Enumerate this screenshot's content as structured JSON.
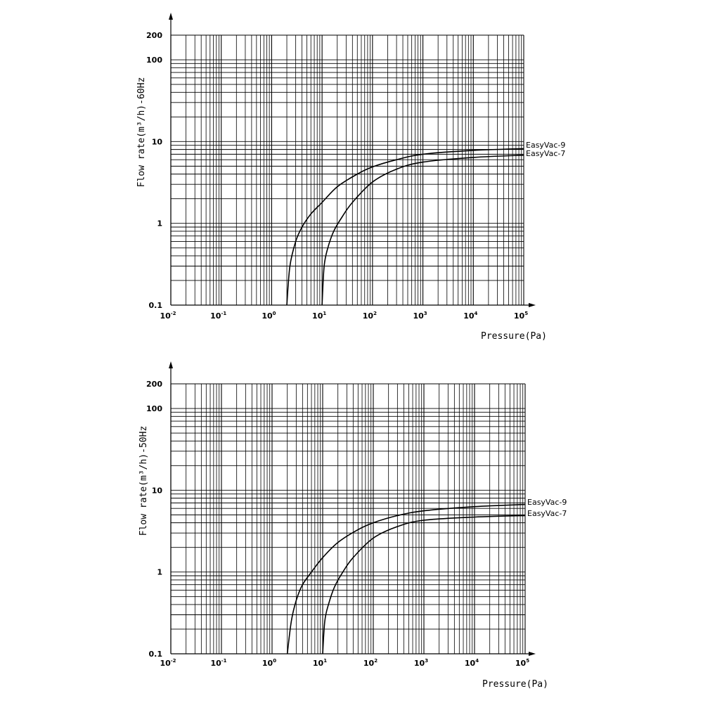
{
  "chart_data": [
    {
      "type": "line",
      "xscale": "log",
      "yscale": "log",
      "xlabel": "Pressure(Pa)",
      "ylabel": "Flow rate(m³/h)-60Hz",
      "xlim": [
        0.01,
        100000
      ],
      "ylim": [
        0.1,
        200
      ],
      "xticks": [
        "10^-2",
        "10^-1",
        "10^0",
        "10^1",
        "10^2",
        "10^3",
        "10^4",
        "10^5"
      ],
      "yticks": [
        0.1,
        1,
        10,
        100,
        200
      ],
      "grid": true,
      "series": [
        {
          "name": "EasyVac-9",
          "x": [
            2,
            2.3,
            3,
            4,
            6,
            10,
            20,
            50,
            100,
            300,
            1000,
            10000,
            100000
          ],
          "y": [
            0.1,
            0.3,
            0.6,
            0.9,
            1.3,
            1.8,
            2.8,
            4.0,
            4.9,
            6.0,
            7.0,
            7.8,
            8.2
          ]
        },
        {
          "name": "EasyVac-7",
          "x": [
            10,
            11,
            13,
            17,
            25,
            40,
            100,
            300,
            1000,
            10000,
            100000
          ],
          "y": [
            0.1,
            0.3,
            0.5,
            0.8,
            1.2,
            1.8,
            3.2,
            4.6,
            5.6,
            6.4,
            6.8
          ]
        }
      ]
    },
    {
      "type": "line",
      "xscale": "log",
      "yscale": "log",
      "xlabel": "Pressure(Pa)",
      "ylabel": "Flow rate(m³/h)-50Hz",
      "xlim": [
        0.01,
        100000
      ],
      "ylim": [
        0.1,
        200
      ],
      "xticks": [
        "10^-2",
        "10^-1",
        "10^0",
        "10^1",
        "10^2",
        "10^3",
        "10^4",
        "10^5"
      ],
      "yticks": [
        0.1,
        1,
        10,
        100,
        200
      ],
      "grid": true,
      "series": [
        {
          "name": "EasyVac-9",
          "x": [
            2,
            2.4,
            3,
            4,
            6,
            10,
            20,
            50,
            100,
            300,
            1000,
            10000,
            100000
          ],
          "y": [
            0.1,
            0.25,
            0.45,
            0.7,
            1.0,
            1.5,
            2.3,
            3.3,
            4.0,
            4.9,
            5.6,
            6.3,
            6.7
          ]
        },
        {
          "name": "EasyVac-7",
          "x": [
            10,
            11,
            13,
            17,
            25,
            40,
            100,
            300,
            1000,
            10000,
            100000
          ],
          "y": [
            0.1,
            0.25,
            0.4,
            0.65,
            1.0,
            1.5,
            2.6,
            3.6,
            4.3,
            4.7,
            4.9
          ]
        }
      ]
    }
  ]
}
